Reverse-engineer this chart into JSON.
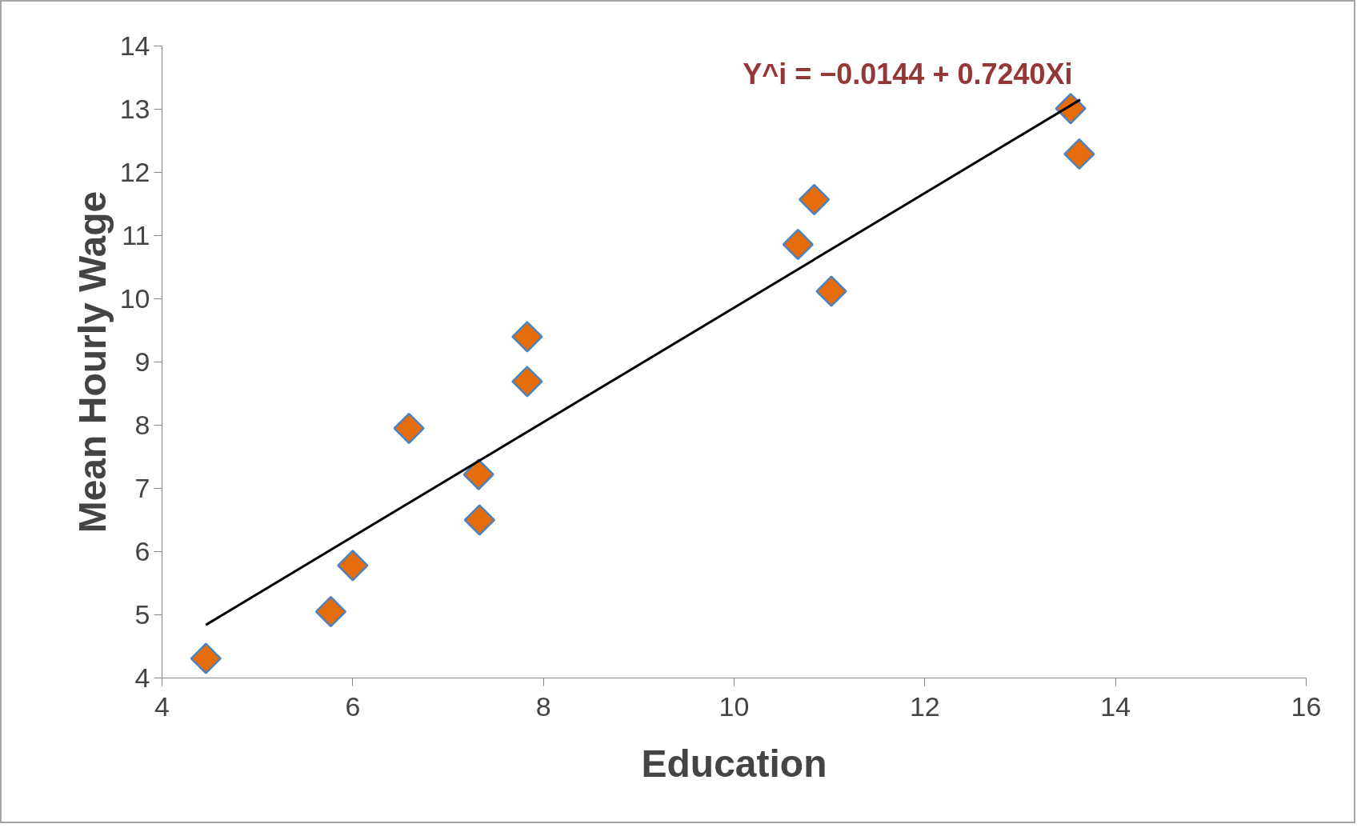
{
  "chart_data": {
    "type": "scatter",
    "xlabel": "Education",
    "ylabel": "Mean Hourly Wage",
    "annotations": [
      "Y^i = −0.0144 + 0.7240Xi"
    ],
    "series": [
      {
        "marker": "diamond",
        "color": "#e46c0a",
        "x": [
          4.46,
          5.77,
          6.0,
          6.59,
          7.32,
          7.33,
          7.83,
          7.83,
          10.67,
          10.84,
          11.02,
          13.53,
          13.62
        ],
        "values": [
          4.31,
          5.05,
          5.78,
          7.95,
          7.22,
          6.5,
          9.4,
          8.69,
          10.86,
          11.57,
          10.12,
          13.01,
          12.29
        ]
      },
      {
        "type": "line",
        "marker": "none",
        "color": "#000000",
        "x": [
          4.46,
          13.63
        ],
        "values": [
          4.84,
          13.15
        ]
      }
    ],
    "grid": false,
    "xlim": [
      4,
      16
    ],
    "xticks": [
      4,
      6,
      8,
      10,
      12,
      14,
      16
    ],
    "ylim": [
      4,
      14
    ],
    "yticks": [
      4,
      5,
      6,
      7,
      8,
      9,
      10,
      11,
      12,
      13,
      14
    ]
  }
}
